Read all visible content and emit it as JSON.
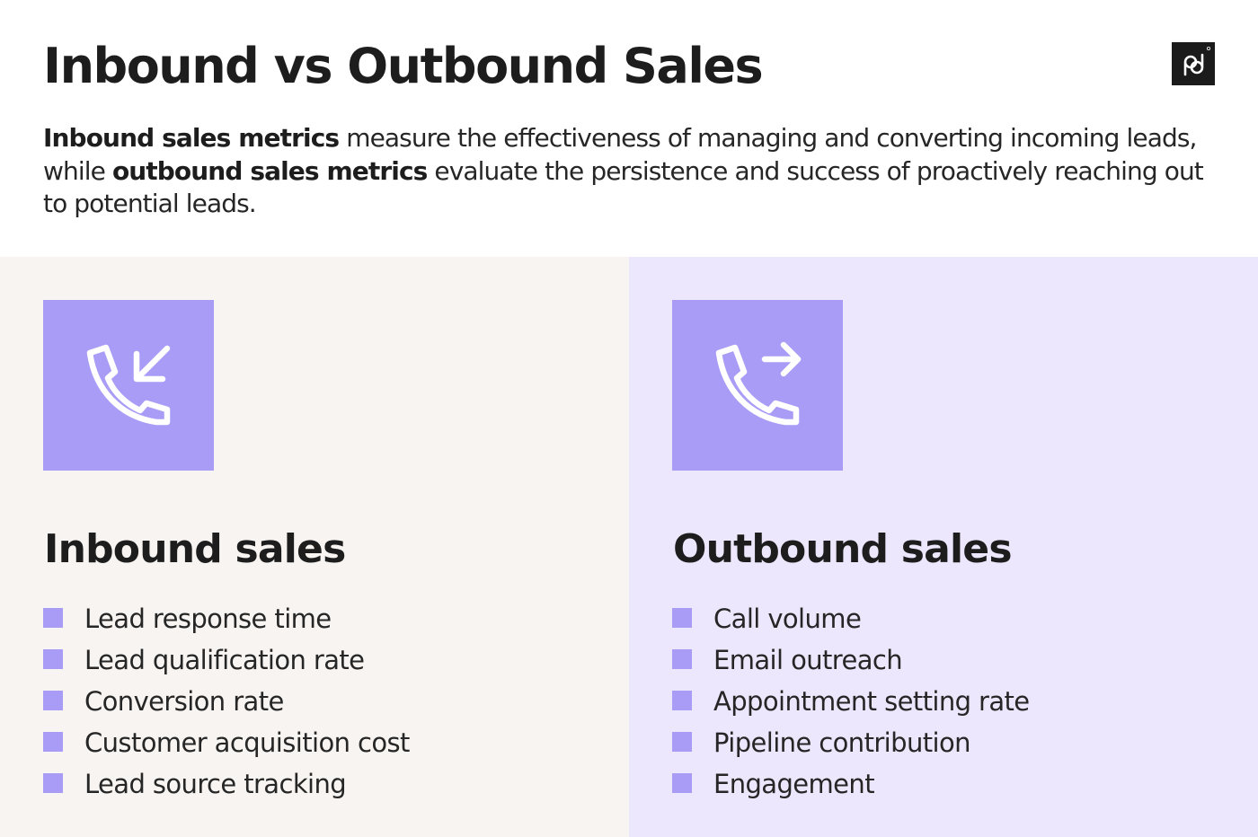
{
  "header": {
    "title": "Inbound vs Outbound Sales",
    "intro": {
      "bold_1": "Inbound sales metrics",
      "text_1": " measure the effectiveness of managing and converting incoming leads, while ",
      "bold_2": "outbound sales metrics",
      "text_2": " evaluate the persistence and success of proactively reaching out to potential leads."
    },
    "logo_icon": "pipedrive-logo-icon"
  },
  "inbound": {
    "icon": "incoming-call-icon",
    "title": "Inbound sales",
    "items": [
      "Lead response time",
      "Lead qualification rate",
      "Conversion rate",
      "Customer acquisition cost",
      "Lead source tracking"
    ]
  },
  "outbound": {
    "icon": "outgoing-call-icon",
    "title": "Outbound sales",
    "items": [
      "Call volume",
      "Email outreach",
      "Appointment setting rate",
      "Pipeline contribution",
      "Engagement"
    ]
  },
  "colors": {
    "accent": "#a99cf7",
    "inbound_bg": "#f7f4f1",
    "outbound_bg": "#ece7fc",
    "text": "#1d1d1d"
  }
}
